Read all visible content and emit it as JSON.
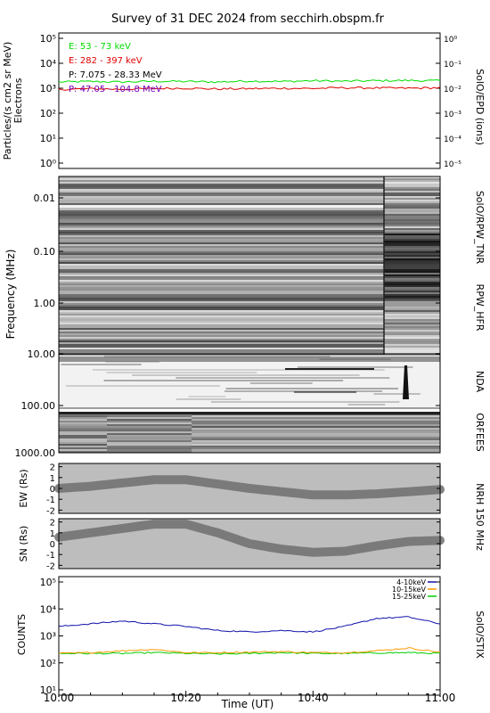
{
  "title": "Survey of 31 DEC 2024 from secchirh.obspm.fr",
  "xaxis": {
    "label": "Time (UT)",
    "ticks": [
      "10:00",
      "10:20",
      "10:40",
      "11:00"
    ],
    "range_minutes": [
      0,
      60
    ]
  },
  "panels": {
    "epd": {
      "side_label": "SolO/EPD (ions)",
      "ylabel_line1": "Particles/(s cm2 sr MeV)",
      "ylabel_line2": "Electrons",
      "left_ticks": [
        "10⁰",
        "10¹",
        "10²",
        "10³",
        "10⁴",
        "10⁵"
      ],
      "right_ticks": [
        "10⁻⁵",
        "10⁻⁴",
        "10⁻³",
        "10⁻²",
        "10⁻¹",
        "10⁰"
      ],
      "legend": [
        {
          "label": "E: 53 - 73 keV",
          "color": "#00dd00"
        },
        {
          "label": "E: 282 - 397 keV",
          "color": "#dd0000"
        },
        {
          "label": "P: 7.075 - 28.33 MeV",
          "color": "#000000"
        },
        {
          "label": "P: 47.05 - 104.8 MeV",
          "color": "#7700bb"
        }
      ]
    },
    "radio": {
      "ylabel": "Frequency (MHz)",
      "ticks": [
        "0.01",
        "0.10",
        "1.00",
        "10.00",
        "100.00",
        "1000.00"
      ],
      "labels": {
        "tnr": "SolO/RPW_TNR",
        "hfr": "RPW_HFR",
        "nda": "NDA",
        "orfees": "ORFEES"
      }
    },
    "nrh_ew": {
      "ylabel": "EW (Rs)",
      "ticks": [
        "2",
        "1",
        "0",
        "-1",
        "-2"
      ],
      "ylim": [
        -2.3,
        2.3
      ]
    },
    "nrh_sn": {
      "ylabel": "SN (Rs)",
      "ticks": [
        "2",
        "1",
        "0",
        "-1",
        "-2"
      ],
      "ylim": [
        -2.3,
        2.3
      ],
      "side_label": "NRH 150 MHz"
    },
    "stix": {
      "ylabel": "COUNTS",
      "side_label": "SolO/STIX",
      "ticks": [
        "10¹",
        "10²",
        "10³",
        "10⁴",
        "10⁵"
      ],
      "legend": [
        {
          "label": "4-10keV",
          "color": "#1010aa"
        },
        {
          "label": "10-15keV",
          "color": "#ff9900"
        },
        {
          "label": "15-25keV",
          "color": "#00cc00"
        }
      ]
    }
  },
  "chart_data": {
    "type": "line",
    "title": "Survey of 31 DEC 2024 from secchirh.obspm.fr",
    "xlabel": "Time (UT)",
    "x_minutes": [
      0,
      5,
      10,
      15,
      20,
      25,
      30,
      35,
      40,
      45,
      50,
      55,
      60
    ],
    "epd_series": [
      {
        "name": "E: 53 - 73 keV",
        "log10_values": [
          3.25,
          3.27,
          3.25,
          3.28,
          3.27,
          3.25,
          3.29,
          3.27,
          3.3,
          3.28,
          3.3,
          3.31,
          3.3
        ]
      },
      {
        "name": "E: 282 - 397 keV",
        "log10_values": [
          2.95,
          2.98,
          2.96,
          2.99,
          3.0,
          2.97,
          2.98,
          3.0,
          2.99,
          3.02,
          3.01,
          3.0,
          3.02
        ]
      }
    ],
    "nrh_ew_center": [
      0.0,
      0.2,
      0.5,
      0.8,
      0.8,
      0.4,
      0.0,
      -0.3,
      -0.6,
      -0.6,
      -0.5,
      -0.3,
      -0.1
    ],
    "nrh_sn_center": [
      0.6,
      1.0,
      1.4,
      1.8,
      1.8,
      1.0,
      0.0,
      -0.5,
      -0.8,
      -0.7,
      -0.2,
      0.2,
      0.3
    ],
    "stix_series": [
      {
        "name": "4-10keV",
        "log10_values": [
          3.35,
          3.45,
          3.55,
          3.45,
          3.35,
          3.2,
          3.15,
          3.2,
          3.15,
          3.35,
          3.65,
          3.7,
          3.45
        ]
      },
      {
        "name": "10-15keV",
        "log10_values": [
          2.35,
          2.38,
          2.45,
          2.5,
          2.38,
          2.38,
          2.4,
          2.42,
          2.38,
          2.38,
          2.45,
          2.55,
          2.4
        ]
      },
      {
        "name": "15-25keV",
        "log10_values": [
          2.35,
          2.35,
          2.35,
          2.38,
          2.35,
          2.33,
          2.35,
          2.38,
          2.35,
          2.35,
          2.37,
          2.38,
          2.35
        ]
      }
    ]
  }
}
